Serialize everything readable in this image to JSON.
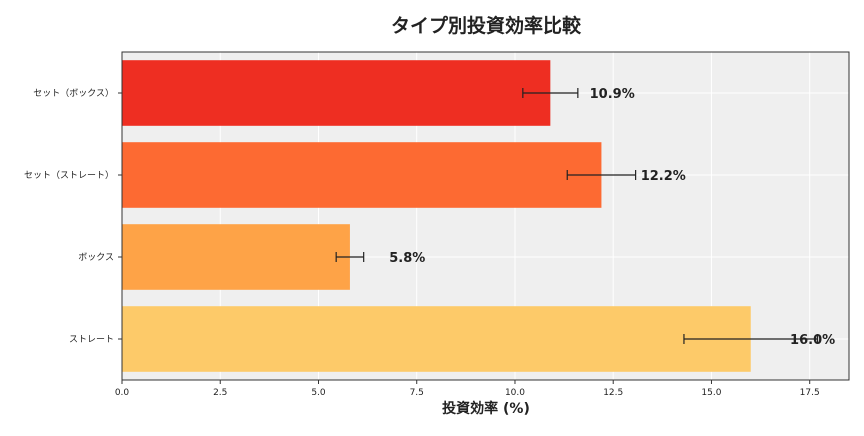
{
  "chart_data": {
    "type": "bar",
    "orientation": "horizontal",
    "title": "タイプ別投資効率比較",
    "xlabel": "投資効率 (%)",
    "ylabel": "",
    "xlim": [
      0,
      18.5
    ],
    "xticks": [
      "0.0",
      "2.5",
      "5.0",
      "7.5",
      "10.0",
      "12.5",
      "15.0",
      "17.5"
    ],
    "grid": true,
    "background": "#efefef",
    "categories": [
      "セット（ボックス）",
      "セット（ストレート）",
      "ボックス",
      "ストレート"
    ],
    "values": [
      10.9,
      12.2,
      5.8,
      16.0
    ],
    "errors": [
      0.7,
      0.87,
      0.35,
      1.7
    ],
    "data_labels": [
      "10.9%",
      "12.2%",
      "5.8%",
      "16.0%"
    ],
    "colors": [
      "#ee2e22",
      "#fd6a32",
      "#fea347",
      "#fdca69"
    ]
  }
}
